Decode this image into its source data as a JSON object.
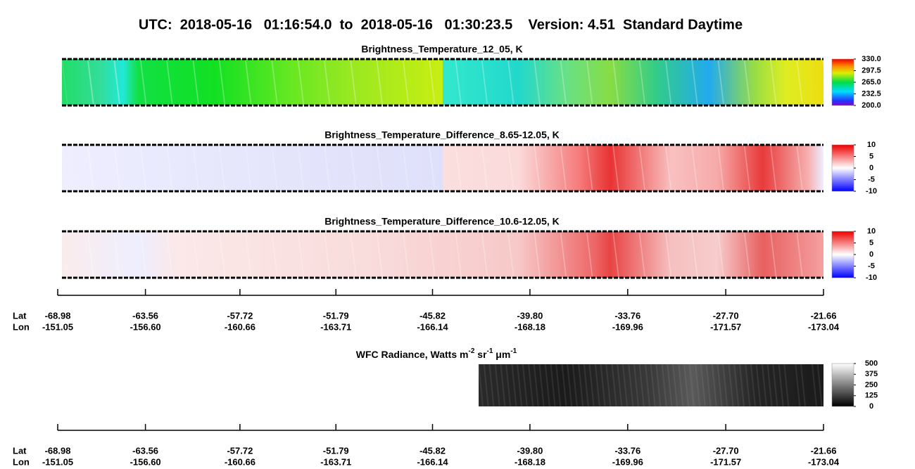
{
  "header": {
    "title": "UTC:  2018-05-16   01:16:54.0  to  2018-05-16   01:30:23.5    Version: 4.51  Standard Daytime"
  },
  "panels": [
    {
      "title": "Brightness_Temperature_12_05, K",
      "colormap": "rainbow",
      "range": [
        200,
        330
      ],
      "ticks": [
        {
          "value": 330,
          "label": "330.0"
        },
        {
          "value": 297.5,
          "label": "297.5"
        },
        {
          "value": 265,
          "label": "265.0"
        },
        {
          "value": 232.5,
          "label": "232.5"
        },
        {
          "value": 200,
          "label": "200.0"
        }
      ]
    },
    {
      "title": "Brightness_Temperature_Difference_8.65-12.05, K",
      "colormap": "diverging",
      "range": [
        -10,
        10
      ],
      "ticks": [
        10,
        5,
        0,
        -5,
        -10
      ]
    },
    {
      "title": "Brightness_Temperature_Difference_10.6-12.05, K",
      "colormap": "diverging",
      "range": [
        -10,
        10
      ],
      "ticks": [
        10,
        5,
        0,
        -5,
        -10
      ]
    }
  ],
  "wfc": {
    "title_parts": [
      "WFC Radiance, Watts m",
      "-2",
      " sr",
      "-1",
      " μm",
      "-1"
    ],
    "colormap": "gray",
    "range": [
      0,
      500
    ],
    "ticks": [
      500,
      375,
      250,
      125,
      0
    ]
  },
  "axes": [
    {
      "lat_label": "Lat",
      "lon_label": "Lon",
      "lat": [
        -68.98,
        -63.56,
        -57.72,
        -51.79,
        -45.82,
        -39.8,
        -33.76,
        -27.7,
        -21.66
      ],
      "lat_labels": [
        "-68.98",
        "-63.56",
        "-57.72",
        "-51.79",
        "-45.82",
        "-39.80",
        "-33.76",
        "-27.70",
        "-21.66"
      ],
      "lon_labels": [
        "-151.05",
        "-156.60",
        "-160.66",
        "-163.71",
        "-166.14",
        "-168.18",
        "-169.96",
        "-171.57",
        "-173.04"
      ]
    },
    {
      "lat_label": "Lat",
      "lon_label": "Lon",
      "lat": [
        -68.98,
        -63.56,
        -57.72,
        -51.79,
        -45.82,
        -39.8,
        -33.76,
        -27.7,
        -21.66
      ],
      "lat_labels": [
        "-68.98",
        "-63.56",
        "-57.72",
        "-51.79",
        "-45.82",
        "-39.80",
        "-33.76",
        "-27.70",
        "-21.66"
      ],
      "lon_labels": [
        "-151.05",
        "-156.60",
        "-160.66",
        "-163.71",
        "-166.14",
        "-168.18",
        "-169.96",
        "-171.57",
        "-173.04"
      ]
    }
  ]
}
